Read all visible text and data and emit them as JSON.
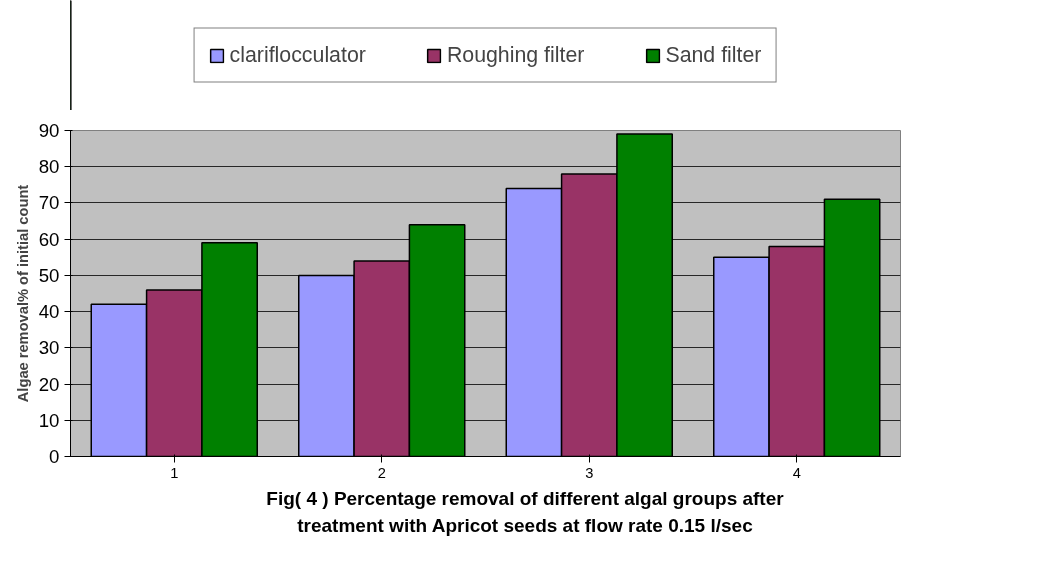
{
  "chart_data": {
    "type": "bar",
    "title": "Fig( 4 ) Percentage removal of different algal groups after treatment with Apricot seeds at flow rate 0.15 l/sec",
    "ylabel": "Algae removal% of initial count",
    "categories": [
      "1",
      "2",
      "3",
      "4"
    ],
    "series": [
      {
        "name": "clariflocculator",
        "color": "#9999ff",
        "values": [
          42,
          50,
          74,
          55
        ]
      },
      {
        "name": "Roughing filter",
        "color": "#993366",
        "values": [
          46,
          54,
          78,
          58
        ]
      },
      {
        "name": "Sand filter",
        "color": "#008000",
        "values": [
          59,
          64,
          89,
          71
        ]
      }
    ],
    "ylim": [
      0,
      90
    ],
    "yticks": [
      0,
      10,
      20,
      30,
      40,
      50,
      60,
      70,
      80,
      90
    ],
    "grid": "y",
    "legend": "top"
  }
}
